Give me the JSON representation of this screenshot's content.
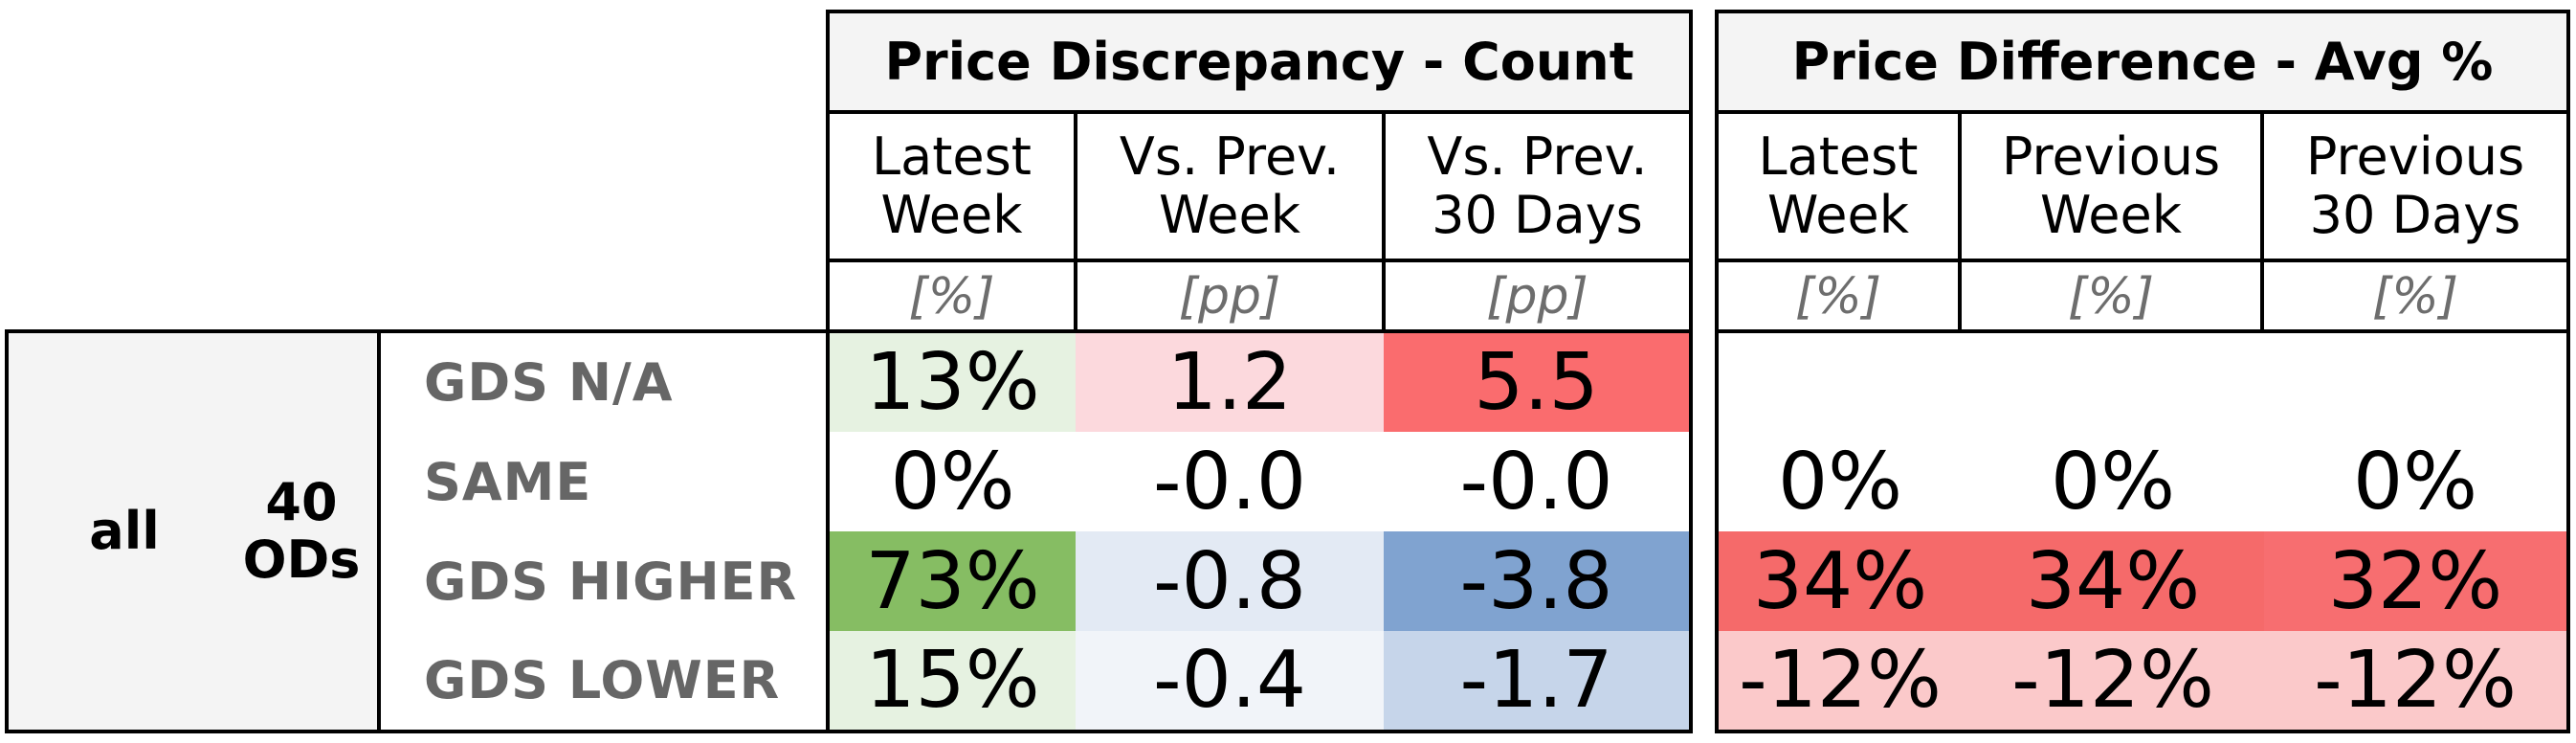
{
  "groups": {
    "count": {
      "title": "Price Discrepancy - Count",
      "columns": [
        {
          "label": "Latest\nWeek",
          "unit": "[%]"
        },
        {
          "label": "Vs. Prev.\nWeek",
          "unit": "[pp]"
        },
        {
          "label": "Vs. Prev.\n30 Days",
          "unit": "[pp]"
        }
      ]
    },
    "avg": {
      "title": "Price Difference - Avg %",
      "columns": [
        {
          "label": "Latest\nWeek",
          "unit": "[%]"
        },
        {
          "label": "Previous\nWeek",
          "unit": "[%]"
        },
        {
          "label": "Previous\n30 Days",
          "unit": "[%]"
        }
      ]
    }
  },
  "segment": {
    "scope": "all",
    "od_count": "40\nODs"
  },
  "rows": [
    {
      "label": "GDS N/A",
      "count": [
        {
          "text": "13%",
          "color": "#e6f2e1"
        },
        {
          "text": "1.2",
          "color": "#fcd9dd"
        },
        {
          "text": "5.5",
          "color": "#fa6c6e"
        }
      ],
      "avg": [
        {
          "text": "",
          "color": "#ffffff"
        },
        {
          "text": "",
          "color": "#ffffff"
        },
        {
          "text": "",
          "color": "#ffffff"
        }
      ]
    },
    {
      "label": "SAME",
      "count": [
        {
          "text": "0%",
          "color": "#ffffff"
        },
        {
          "text": "-0.0",
          "color": "#ffffff"
        },
        {
          "text": "-0.0",
          "color": "#ffffff"
        }
      ],
      "avg": [
        {
          "text": "0%",
          "color": "#ffffff"
        },
        {
          "text": "0%",
          "color": "#ffffff"
        },
        {
          "text": "0%",
          "color": "#ffffff"
        }
      ]
    },
    {
      "label": "GDS HIGHER",
      "count": [
        {
          "text": "73%",
          "color": "#86bd63"
        },
        {
          "text": "-0.8",
          "color": "#e3eaf4"
        },
        {
          "text": "-3.8",
          "color": "#80a3d0"
        }
      ],
      "avg": [
        {
          "text": "34%",
          "color": "#f56a6a"
        },
        {
          "text": "34%",
          "color": "#f56a6a"
        },
        {
          "text": "32%",
          "color": "#f76e70"
        }
      ]
    },
    {
      "label": "GDS LOWER",
      "count": [
        {
          "text": "15%",
          "color": "#e6f2e1"
        },
        {
          "text": "-0.4",
          "color": "#f1f4f9"
        },
        {
          "text": "-1.7",
          "color": "#c6d5ea"
        }
      ],
      "avg": [
        {
          "text": "-12%",
          "color": "#fbc9ca"
        },
        {
          "text": "-12%",
          "color": "#fbc9ca"
        },
        {
          "text": "-12%",
          "color": "#fbc9ca"
        }
      ]
    }
  ],
  "chart_data": {
    "type": "table",
    "row_labels": [
      "GDS N/A",
      "SAME",
      "GDS HIGHER",
      "GDS LOWER"
    ],
    "column_groups": [
      "Price Discrepancy - Count",
      "Price Difference - Avg %"
    ],
    "count_columns": [
      "Latest Week [%]",
      "Vs. Prev. Week [pp]",
      "Vs. Prev. 30 Days [pp]"
    ],
    "count_values": [
      [
        13,
        1.2,
        5.5
      ],
      [
        0,
        -0.0,
        -0.0
      ],
      [
        73,
        -0.8,
        -3.8
      ],
      [
        15,
        -0.4,
        -1.7
      ]
    ],
    "avg_columns": [
      "Latest Week [%]",
      "Previous Week [%]",
      "Previous 30 Days [%]"
    ],
    "avg_values": [
      [
        null,
        null,
        null
      ],
      [
        0,
        0,
        0
      ],
      [
        34,
        34,
        32
      ],
      [
        -12,
        -12,
        -12
      ]
    ]
  }
}
